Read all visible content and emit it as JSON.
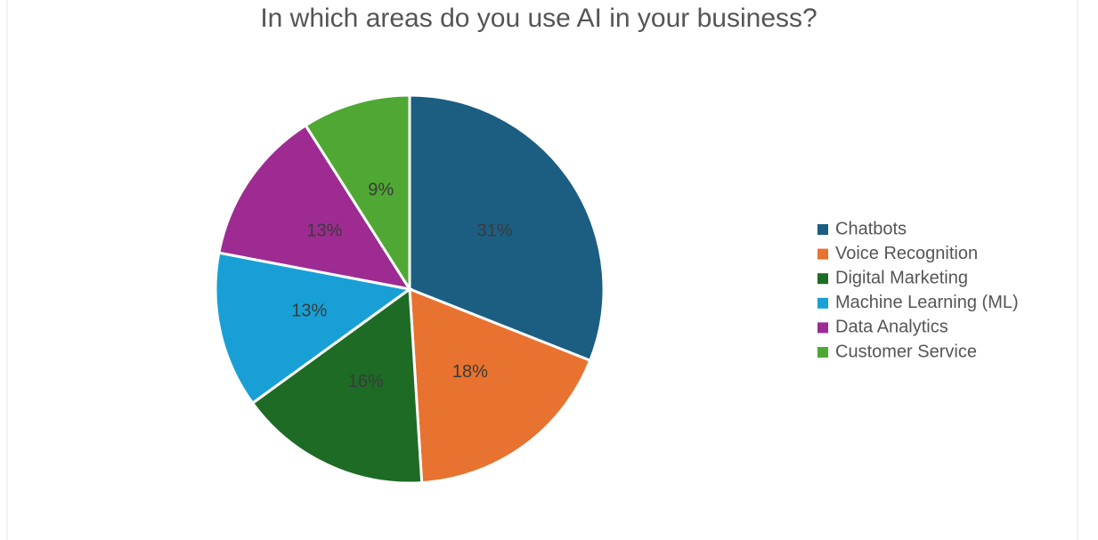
{
  "chart_data": {
    "type": "pie",
    "title": "In which areas do you use AI in your business?",
    "categories": [
      "Chatbots",
      "Voice Recognition",
      "Digital Marketing",
      "Machine Learning (ML)",
      "Data Analytics",
      "Customer Service"
    ],
    "values": [
      31,
      18,
      16,
      13,
      13,
      9
    ],
    "value_labels": [
      "31%",
      "18%",
      "16%",
      "13%",
      "13%",
      "9%"
    ],
    "colors": [
      "#1b5e82",
      "#e8722f",
      "#1e6b26",
      "#18a0d6",
      "#9e2b91",
      "#4fa833"
    ],
    "legend": "right"
  }
}
